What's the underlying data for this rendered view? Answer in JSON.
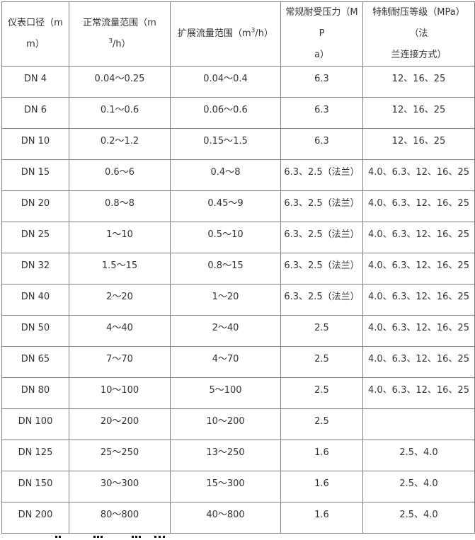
{
  "page": {
    "background_color": "#ffffff",
    "text_color": "#333333",
    "border_color": "#808080"
  },
  "table": {
    "header_row": [
      {
        "label": "仪表口径（mm）",
        "segments": [
          {
            "text": "仪表口径（m"
          },
          {
            "br": true
          },
          {
            "text": "m）"
          }
        ]
      },
      {
        "label": "正常流量范围（m3/h）",
        "segments": [
          {
            "text": "正常流量范围（m"
          },
          {
            "sup": "3"
          },
          {
            "text": "/h）"
          }
        ]
      },
      {
        "label": "扩展流量范围（m3/h）",
        "segments": [
          {
            "text": "扩展流量范围（m"
          },
          {
            "sup": "3"
          },
          {
            "text": "/h）"
          }
        ]
      },
      {
        "label": "常规耐受压力（MPa）",
        "segments": [
          {
            "text": "常规耐受压力（MP"
          },
          {
            "br": true
          },
          {
            "text": "a）"
          }
        ]
      },
      {
        "label": "特制耐压等级（MPa）（法兰连接方式）",
        "segments": [
          {
            "text": "特制耐压等级（MPa）（法"
          },
          {
            "br": true
          },
          {
            "text": "兰连接方式）"
          }
        ]
      }
    ],
    "rows": [
      [
        "DN 4",
        "0.04～0.25",
        "0.04～0.4",
        "6.3",
        "12、16、25"
      ],
      [
        "DN 6",
        "0.1～0.6",
        "0.06～0.6",
        "6.3",
        "12、16、25"
      ],
      [
        "DN 10",
        "0.2～1.2",
        "0.15～1.5",
        "6.3",
        "12、16、25"
      ],
      [
        "DN 15",
        "0.6～6",
        "0.4～8",
        "6.3、2.5（法兰）",
        "4.0、6.3、12、16、25"
      ],
      [
        "DN 20",
        "0.8～8",
        "0.45～9",
        "6.3、2.5（法兰）",
        "4.0、6.3、12、16、25"
      ],
      [
        "DN 25",
        "1～10",
        "0.5～10",
        "6.3、2.5（法兰）",
        "4.0、6.3、12、16、25"
      ],
      [
        "DN 32",
        "1.5～15",
        "0.8～15",
        "6.3、2.5（法兰）",
        "4.0、6.3、12、16、25"
      ],
      [
        "DN 40",
        "2～20",
        "1～20",
        "6.3、2.5（法兰）",
        "4.0、6.3、12、16、25"
      ],
      [
        "DN 50",
        "4～40",
        "2～40",
        "2.5",
        "4.0、6.3、12、16、25"
      ],
      [
        "DN 65",
        "7～70",
        "4～70",
        "2.5",
        "4.0、6.3、12、16、25"
      ],
      [
        "DN 80",
        "10～100",
        "5～100",
        "2.5",
        "4.0、6.3、12、16、25"
      ],
      [
        "DN 100",
        "20～200",
        "10～200",
        "2.5",
        ""
      ],
      [
        "DN 125",
        "25～250",
        "13～250",
        "1.6",
        "2.5、4.0"
      ],
      [
        "DN 150",
        "30～300",
        "15～300",
        "1.6",
        "2.5、4.0"
      ],
      [
        "DN 200",
        "80～800",
        "40～800",
        "1.6",
        "2.5、4.0"
      ]
    ]
  }
}
